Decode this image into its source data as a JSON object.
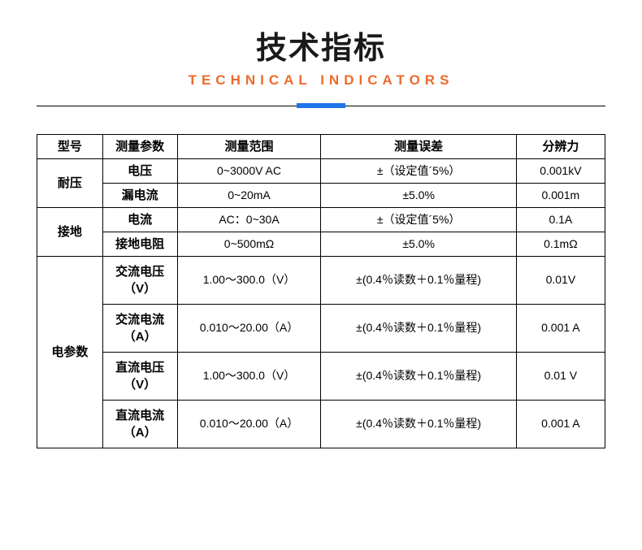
{
  "header": {
    "title_cn": "技术指标",
    "title_en": "TECHNICAL INDICATORS"
  },
  "table": {
    "columns": [
      "型号",
      "测量参数",
      "测量范围",
      "测量误差",
      "分辨力"
    ],
    "groups": [
      {
        "model": "耐压",
        "rows": [
          {
            "param": "电压",
            "range": "0~3000V AC",
            "error": "±（设定值´5%）",
            "resolution": "0.001kV"
          },
          {
            "param": "漏电流",
            "range": "0~20mA",
            "error": "±5.0%",
            "resolution": "0.001m"
          }
        ]
      },
      {
        "model": "接地",
        "rows": [
          {
            "param": "电流",
            "range": "AC：0~30A",
            "error": "±（设定值´5%）",
            "resolution": "0.1A"
          },
          {
            "param": "接地电阻",
            "range": "0~500mΩ",
            "error": "±5.0%",
            "resolution": "0.1mΩ"
          }
        ]
      },
      {
        "model": "电参数",
        "rows": [
          {
            "param": "交流电压（V）",
            "range": "1.00～300.0（V）",
            "error": "±(0.4％读数＋0.1％量程)",
            "resolution": "0.01V"
          },
          {
            "param": "交流电流（A）",
            "range": "0.010～20.00（A）",
            "error": "±(0.4％读数＋0.1％量程)",
            "resolution": "0.001 A"
          },
          {
            "param": "直流电压（V）",
            "range": "1.00～300.0（V）",
            "error": "±(0.4％读数＋0.1％量程)",
            "resolution": "0.01 V"
          },
          {
            "param": "直流电流（A）",
            "range": "0.010～20.00（A）",
            "error": "±(0.4％读数＋0.1％量程)",
            "resolution": "0.001 A"
          }
        ]
      }
    ]
  },
  "style": {
    "accent_color": "#ec6b2d",
    "divider_bar_color": "#1e73e8",
    "border_color": "#000000",
    "background": "#ffffff"
  }
}
